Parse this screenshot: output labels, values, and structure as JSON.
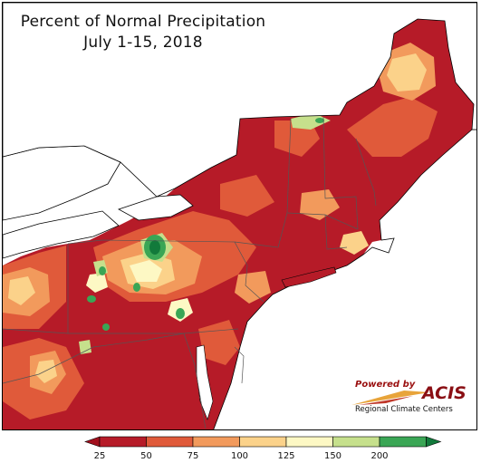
{
  "title": {
    "line1": "Percent of Normal Precipitation",
    "line2": "July 1-15, 2018"
  },
  "logo": {
    "powered_by": "Powered by",
    "name": "ACIS",
    "subtitle": "Regional Climate Centers"
  },
  "legend": {
    "bins": [
      {
        "color": "#b61b28"
      },
      {
        "color": "#e05a3a"
      },
      {
        "color": "#f29a5c"
      },
      {
        "color": "#fbd28a"
      },
      {
        "color": "#fdf8c4"
      },
      {
        "color": "#c6e08c"
      },
      {
        "color": "#3aa655"
      }
    ],
    "under_color": "#a3101e",
    "over_color": "#127a3b",
    "ticks": [
      "25",
      "50",
      "75",
      "100",
      "125",
      "150",
      "200"
    ]
  },
  "colors": {
    "very_dry": "#b61b28",
    "dry": "#e05a3a",
    "below": "#f29a5c",
    "near": "#fbd28a",
    "above": "#fdf8c4",
    "wet": "#c6e08c",
    "very_wet": "#3aa655",
    "extreme_wet": "#127a3b",
    "water": "#ffffff",
    "boundary": "#555555"
  }
}
